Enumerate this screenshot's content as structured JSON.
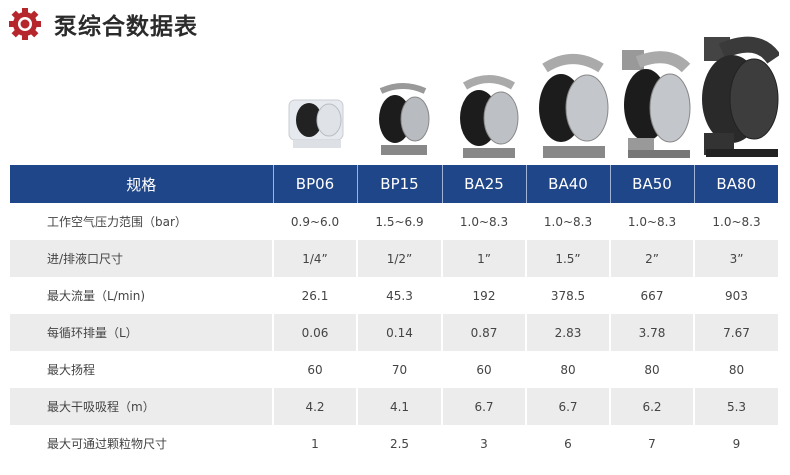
{
  "title": "泵综合数据表",
  "colors": {
    "header_bg": "#1f4688",
    "accent_gear": "#b5272d",
    "alt_row": "#ececec"
  },
  "table": {
    "header": [
      "规格",
      "BP06",
      "BP15",
      "BA25",
      "BA40",
      "BA50",
      "BA80"
    ],
    "rows": [
      {
        "label": "工作空气压力范围（bar）",
        "values": [
          "0.9~6.0",
          "1.5~6.9",
          "1.0~8.3",
          "1.0~8.3",
          "1.0~8.3",
          "1.0~8.3"
        ]
      },
      {
        "label": "进/排液口尺寸",
        "values": [
          "1/4”",
          "1/2”",
          "1”",
          "1.5”",
          "2”",
          "3”"
        ]
      },
      {
        "label": "最大流量（L/min)",
        "values": [
          "26.1",
          "45.3",
          "192",
          "378.5",
          "667",
          "903"
        ]
      },
      {
        "label": "每循环排量（L）",
        "values": [
          "0.06",
          "0.14",
          "0.87",
          "2.83",
          "3.78",
          "7.67"
        ]
      },
      {
        "label": "最大扬程",
        "values": [
          "60",
          "70",
          "60",
          "80",
          "80",
          "80"
        ]
      },
      {
        "label": "最大干吸吸程（m）",
        "values": [
          "4.2",
          "4.1",
          "6.7",
          "6.7",
          "6.2",
          "5.3"
        ]
      },
      {
        "label": "最大可通过颗粒物尺寸",
        "values": [
          "1",
          "2.5",
          "3",
          "6",
          "7",
          "9"
        ]
      }
    ]
  }
}
